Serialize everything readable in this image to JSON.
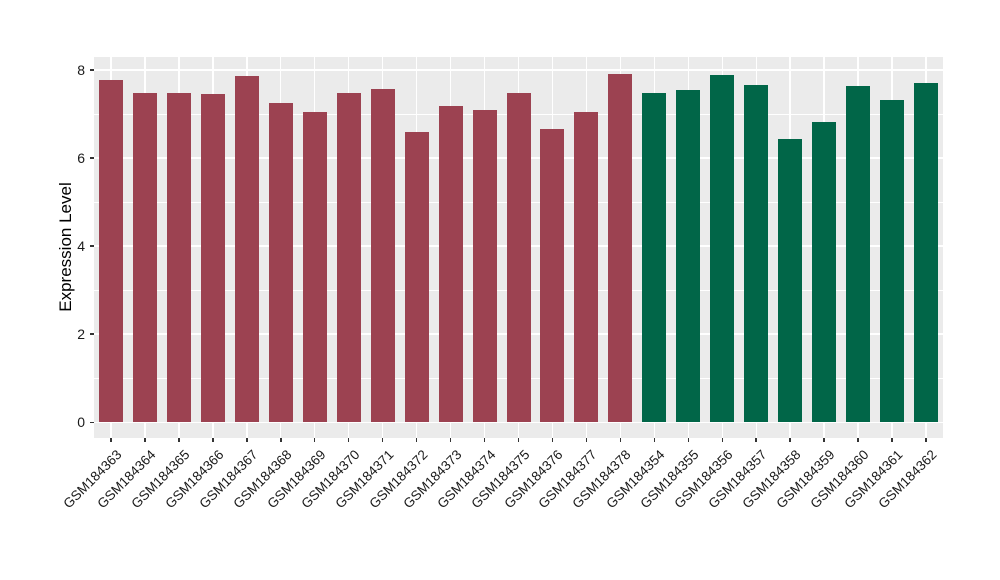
{
  "chart_data": {
    "type": "bar",
    "title": "",
    "xlabel": "",
    "ylabel": "Expression Level",
    "ylim": [
      0,
      8.6
    ],
    "yticks": [
      0,
      2,
      4,
      6,
      8
    ],
    "ytick_labels": [
      "0",
      "2",
      "4",
      "6",
      "8"
    ],
    "yticks_minor": [
      1,
      3,
      5,
      7
    ],
    "grid": "white major/minor horizontal lines and white vertical category lines on gray panel",
    "legend_position": "none",
    "categories": [
      "GSM184363",
      "GSM184364",
      "GSM184365",
      "GSM184366",
      "GSM184367",
      "GSM184368",
      "GSM184369",
      "GSM184370",
      "GSM184371",
      "GSM184372",
      "GSM184373",
      "GSM184374",
      "GSM184375",
      "GSM184376",
      "GSM184377",
      "GSM184378",
      "GSM184354",
      "GSM184355",
      "GSM184356",
      "GSM184357",
      "GSM184358",
      "GSM184359",
      "GSM184360",
      "GSM184361",
      "GSM184362"
    ],
    "values": [
      7.77,
      7.47,
      7.47,
      7.46,
      7.86,
      7.24,
      7.05,
      7.47,
      7.56,
      6.6,
      7.19,
      7.1,
      7.47,
      6.65,
      7.04,
      7.9,
      7.47,
      7.55,
      7.88,
      7.67,
      6.44,
      6.83,
      7.63,
      7.31,
      7.7
    ],
    "groups": [
      "group1",
      "group1",
      "group1",
      "group1",
      "group1",
      "group1",
      "group1",
      "group1",
      "group1",
      "group1",
      "group1",
      "group1",
      "group1",
      "group1",
      "group1",
      "group1",
      "group2",
      "group2",
      "group2",
      "group2",
      "group2",
      "group2",
      "group2",
      "group2",
      "group2"
    ],
    "group_colors": {
      "group1": "#9C4251",
      "group2": "#016648"
    },
    "panel_background": "#EBEBEB",
    "grid_color": "#FFFFFF",
    "tick_color": "#333333",
    "text_color": "#1A1A1A"
  }
}
